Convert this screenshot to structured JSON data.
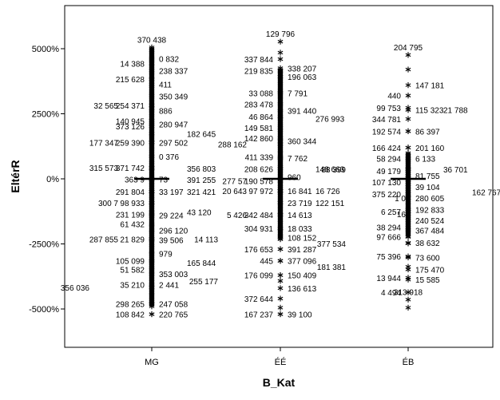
{
  "chart_data": {
    "type": "scatter",
    "title": "",
    "xlabel": "B_Kat",
    "ylabel": "EltérR",
    "categories": [
      "MG",
      "EE",
      "EB"
    ],
    "category_labels": [
      "MG",
      "ÉÉ",
      "ÉB"
    ],
    "ylim": [
      -6500,
      6500
    ],
    "yticks": [
      5000,
      2500,
      0,
      -2500,
      -5000
    ],
    "ytick_labels": [
      "5000%",
      "2500%",
      "0%",
      "-2500%",
      "-5000%"
    ],
    "grid": false,
    "legend": "none",
    "colors": {
      "background": "#ffffff",
      "marks": "#000000",
      "frame": "#000000"
    },
    "marker": "asterisk",
    "series": [
      {
        "category": "MG",
        "median": 0,
        "dense_range": [
          -4900,
          5050
        ],
        "points": [
          {
            "y": 5050,
            "label": "370 438",
            "side": "center"
          },
          {
            "y": 4620,
            "label": "0 832",
            "side": "right"
          },
          {
            "y": 4440,
            "label": "14 388",
            "side": "left"
          },
          {
            "y": 4160,
            "label": "238 337",
            "side": "right"
          },
          {
            "y": 3830,
            "label": "215 628",
            "side": "left"
          },
          {
            "y": 3630,
            "label": "411",
            "side": "right"
          },
          {
            "y": 3180,
            "label": "350 349",
            "side": "right"
          },
          {
            "y": 2820,
            "label": "254 371",
            "side": "left"
          },
          {
            "y": 2820,
            "label": "32 565",
            "side": "left2"
          },
          {
            "y": 2620,
            "label": "886",
            "side": "right"
          },
          {
            "y": 2230,
            "label": "140 945",
            "side": "left"
          },
          {
            "y": 2100,
            "label": "280 947",
            "side": "right"
          },
          {
            "y": 2030,
            "label": "373 126",
            "side": "left"
          },
          {
            "y": 1730,
            "label": "182 645",
            "side": "right2"
          },
          {
            "y": 1400,
            "label": "259 390",
            "side": "left"
          },
          {
            "y": 1400,
            "label": "177 347",
            "side": "left2"
          },
          {
            "y": 1400,
            "label": "297 502",
            "side": "right"
          },
          {
            "y": 860,
            "label": "0 376",
            "side": "right"
          },
          {
            "y": 430,
            "label": "371 742",
            "side": "left"
          },
          {
            "y": 430,
            "label": "315 573",
            "side": "left2"
          },
          {
            "y": 400,
            "label": "356 803",
            "side": "right2"
          },
          {
            "y": -10,
            "label": "363 9",
            "side": "left"
          },
          {
            "y": -10,
            "label": "73",
            "side": "right"
          },
          {
            "y": -30,
            "label": "391 255",
            "side": "right2"
          },
          {
            "y": -490,
            "label": "291 804",
            "side": "left"
          },
          {
            "y": -490,
            "label": "33 197",
            "side": "right"
          },
          {
            "y": -490,
            "label": "321 421",
            "side": "right2"
          },
          {
            "y": -920,
            "label": "98 933",
            "side": "left"
          },
          {
            "y": -920,
            "label": "300 7",
            "side": "left2"
          },
          {
            "y": -1360,
            "label": "231 199",
            "side": "left"
          },
          {
            "y": -1400,
            "label": "29 224",
            "side": "right"
          },
          {
            "y": -1280,
            "label": "43 120",
            "side": "right2"
          },
          {
            "y": -1740,
            "label": "61 432",
            "side": "left"
          },
          {
            "y": -1980,
            "label": "296 120",
            "side": "right"
          },
          {
            "y": -2310,
            "label": "21 829",
            "side": "left"
          },
          {
            "y": -2310,
            "label": "287 855",
            "side": "left2"
          },
          {
            "y": -2350,
            "label": "39 506",
            "side": "right"
          },
          {
            "y": -2870,
            "label": "979",
            "side": "right"
          },
          {
            "y": -3150,
            "label": "105 099",
            "side": "left"
          },
          {
            "y": -3220,
            "label": "165 844",
            "side": "right2"
          },
          {
            "y": -3480,
            "label": "51 582",
            "side": "left"
          },
          {
            "y": -3650,
            "label": "353 003",
            "side": "right"
          },
          {
            "y": -4070,
            "label": "35 210",
            "side": "left"
          },
          {
            "y": -4070,
            "label": "2 441",
            "side": "right"
          },
          {
            "y": -4170,
            "label": "356 036",
            "side": "left3"
          },
          {
            "y": -4800,
            "label": "298 265",
            "side": "left"
          },
          {
            "y": -4800,
            "label": "247 058",
            "side": "right"
          },
          {
            "y": -5200,
            "label": "108 842",
            "side": "left"
          },
          {
            "y": -5200,
            "label": "220 765",
            "side": "right"
          }
        ]
      },
      {
        "category": "EE",
        "median": 0,
        "dense_range": [
          -2300,
          4200
        ],
        "points": [
          {
            "y": 5270,
            "label": "129 796",
            "side": "center"
          },
          {
            "y": 4850,
            "label": "",
            "side": "none"
          },
          {
            "y": 4600,
            "label": "337 844",
            "side": "left"
          },
          {
            "y": 4250,
            "label": "338 207",
            "side": "right"
          },
          {
            "y": 4150,
            "label": "219 835",
            "side": "left"
          },
          {
            "y": 3920,
            "label": "196 063",
            "side": "right"
          },
          {
            "y": 3300,
            "label": "33 088",
            "side": "left"
          },
          {
            "y": 3300,
            "label": "7 791",
            "side": "right"
          },
          {
            "y": 2870,
            "label": "283 478",
            "side": "left"
          },
          {
            "y": 2620,
            "label": "391 440",
            "side": "right"
          },
          {
            "y": 2400,
            "label": "46 864",
            "side": "left"
          },
          {
            "y": 2320,
            "label": "276 993",
            "side": "right2"
          },
          {
            "y": 1960,
            "label": "149 581",
            "side": "left"
          },
          {
            "y": 1560,
            "label": "142 860",
            "side": "left"
          },
          {
            "y": 1450,
            "label": "360 344",
            "side": "right"
          },
          {
            "y": 1330,
            "label": "288 162",
            "side": "left2"
          },
          {
            "y": 850,
            "label": "411 339",
            "side": "left"
          },
          {
            "y": 800,
            "label": "7 762",
            "side": "right"
          },
          {
            "y": 390,
            "label": "208 626",
            "side": "left"
          },
          {
            "y": 390,
            "label": "148 663",
            "side": "right2"
          },
          {
            "y": 80,
            "label": "960",
            "side": "right"
          },
          {
            "y": -80,
            "label": "190 578",
            "side": "left"
          },
          {
            "y": -80,
            "label": "277 57",
            "side": "left2"
          },
          {
            "y": -460,
            "label": "97 972",
            "side": "left"
          },
          {
            "y": -460,
            "label": "20 643",
            "side": "left2"
          },
          {
            "y": -460,
            "label": "16 841",
            "side": "right"
          },
          {
            "y": -460,
            "label": "16 726",
            "side": "right2"
          },
          {
            "y": -920,
            "label": "23 719",
            "side": "right"
          },
          {
            "y": -920,
            "label": "122 151",
            "side": "right2"
          },
          {
            "y": -1380,
            "label": "342 484",
            "side": "left"
          },
          {
            "y": -1380,
            "label": "5 426",
            "side": "left2"
          },
          {
            "y": -1380,
            "label": "14 613",
            "side": "right"
          },
          {
            "y": -1900,
            "label": "304 931",
            "side": "left"
          },
          {
            "y": -1900,
            "label": "18 033",
            "side": "right"
          },
          {
            "y": -2250,
            "label": "108 152",
            "side": "right"
          },
          {
            "y": -2320,
            "label": "14 113",
            "side": "left3"
          },
          {
            "y": -2700,
            "label": "176 653",
            "side": "left"
          },
          {
            "y": -2700,
            "label": "391 287",
            "side": "right"
          },
          {
            "y": -3150,
            "label": "445",
            "side": "left"
          },
          {
            "y": -3150,
            "label": "377 096",
            "side": "right"
          },
          {
            "y": -3700,
            "label": "176 099",
            "side": "left"
          },
          {
            "y": -3700,
            "label": "150 409",
            "side": "right"
          },
          {
            "y": -3920,
            "label": "255 177",
            "side": "left3"
          },
          {
            "y": -4200,
            "label": "136 613",
            "side": "right"
          },
          {
            "y": -4600,
            "label": "372 644",
            "side": "left"
          },
          {
            "y": -4950,
            "label": "",
            "side": "none"
          },
          {
            "y": -5200,
            "label": "167 237",
            "side": "left"
          },
          {
            "y": -5200,
            "label": "39 100",
            "side": "right"
          }
        ]
      },
      {
        "category": "EB",
        "median": 0,
        "dense_range": [
          -2200,
          1000
        ],
        "points": [
          {
            "y": 4760,
            "label": "204 795",
            "side": "center"
          },
          {
            "y": 4200,
            "label": "",
            "side": "none"
          },
          {
            "y": 3600,
            "label": "147 181",
            "side": "right"
          },
          {
            "y": 3200,
            "label": "440",
            "side": "left"
          },
          {
            "y": 2730,
            "label": "99 753",
            "side": "left"
          },
          {
            "y": 2650,
            "label": "115 323",
            "side": "right"
          },
          {
            "y": 2650,
            "label": "21 788",
            "side": "right2"
          },
          {
            "y": 2300,
            "label": "344 781",
            "side": "left"
          },
          {
            "y": 1830,
            "label": "192 574",
            "side": "left"
          },
          {
            "y": 1830,
            "label": "86 397",
            "side": "right"
          },
          {
            "y": 1200,
            "label": "166 424",
            "side": "left"
          },
          {
            "y": 1200,
            "label": "201 160",
            "side": "right"
          },
          {
            "y": 780,
            "label": "58 294",
            "side": "left"
          },
          {
            "y": 780,
            "label": "6 133",
            "side": "right"
          },
          {
            "y": 370,
            "label": "88 399",
            "side": "left3"
          },
          {
            "y": 300,
            "label": "49 179",
            "side": "left"
          },
          {
            "y": 370,
            "label": "36 701",
            "side": "right2"
          },
          {
            "y": 120,
            "label": "81 755",
            "side": "right"
          },
          {
            "y": -130,
            "label": "107 130",
            "side": "left"
          },
          {
            "y": -300,
            "label": "39 104",
            "side": "right"
          },
          {
            "y": -580,
            "label": "375 220",
            "side": "left"
          },
          {
            "y": -500,
            "label": "162 767",
            "side": "right3"
          },
          {
            "y": -730,
            "label": "1 0",
            "side": "left0"
          },
          {
            "y": -730,
            "label": "280 605",
            "side": "right"
          },
          {
            "y": -1180,
            "label": "192 833",
            "side": "right"
          },
          {
            "y": -1250,
            "label": "6 257",
            "side": "left"
          },
          {
            "y": -1350,
            "label": "16",
            "side": "left0"
          },
          {
            "y": -1600,
            "label": "240 524",
            "side": "right"
          },
          {
            "y": -1860,
            "label": "38 294",
            "side": "left"
          },
          {
            "y": -1980,
            "label": "367 484",
            "side": "right"
          },
          {
            "y": -2230,
            "label": "97 666",
            "side": "left"
          },
          {
            "y": -2480,
            "label": "377 534",
            "side": "left3"
          },
          {
            "y": -2460,
            "label": "38 632",
            "side": "right"
          },
          {
            "y": -2980,
            "label": "75 396",
            "side": "left"
          },
          {
            "y": -3020,
            "label": "73 600",
            "side": "right"
          },
          {
            "y": -3380,
            "label": "181 381",
            "side": "left3"
          },
          {
            "y": -3480,
            "label": "175 470",
            "side": "right"
          },
          {
            "y": -3800,
            "label": "13 944",
            "side": "left"
          },
          {
            "y": -3870,
            "label": "15 585",
            "side": "right"
          },
          {
            "y": -4360,
            "label": "4 494",
            "side": "left"
          },
          {
            "y": -4640,
            "label": "313 918",
            "side": "center"
          },
          {
            "y": -4950,
            "label": "",
            "side": "none"
          }
        ]
      }
    ]
  }
}
